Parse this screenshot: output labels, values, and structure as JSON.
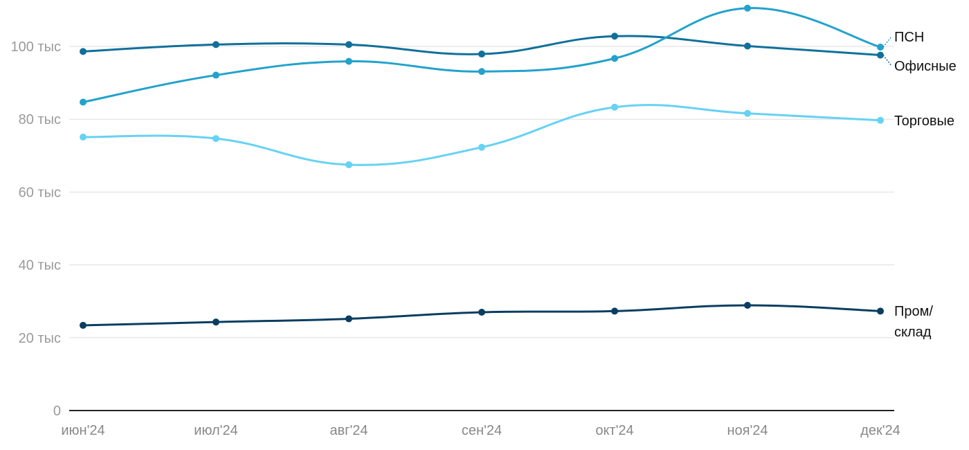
{
  "chart_data": {
    "type": "line",
    "categories": [
      "июн'24",
      "июл'24",
      "авг'24",
      "сен'24",
      "окт'24",
      "ноя'24",
      "дек'24"
    ],
    "ylim": [
      0,
      110000
    ],
    "yticks": [
      {
        "value": 0,
        "label": "0"
      },
      {
        "value": 20000,
        "label": "20 тыс"
      },
      {
        "value": 40000,
        "label": "40 тыс"
      },
      {
        "value": 60000,
        "label": "60 тыс"
      },
      {
        "value": 80000,
        "label": "80 тыс"
      },
      {
        "value": 100000,
        "label": "100 тыс"
      }
    ],
    "grid": true,
    "series": [
      {
        "name": "ПСН",
        "color": "#22a2cc",
        "values": [
          84700,
          92100,
          95900,
          93100,
          96700,
          110500,
          99800
        ]
      },
      {
        "name": "Офисные",
        "color": "#10709a",
        "values": [
          98600,
          100500,
          100500,
          97900,
          102800,
          100100,
          97600
        ]
      },
      {
        "name": "Торговые",
        "color": "#66d2f4",
        "values": [
          75100,
          74700,
          67500,
          72300,
          83300,
          81600,
          79700
        ]
      },
      {
        "name": "Пром/склад",
        "label_lines": [
          "Пром/",
          "склад"
        ],
        "color": "#0a3d61",
        "values": [
          23400,
          24300,
          25200,
          27000,
          27300,
          28900,
          27300
        ]
      }
    ]
  }
}
